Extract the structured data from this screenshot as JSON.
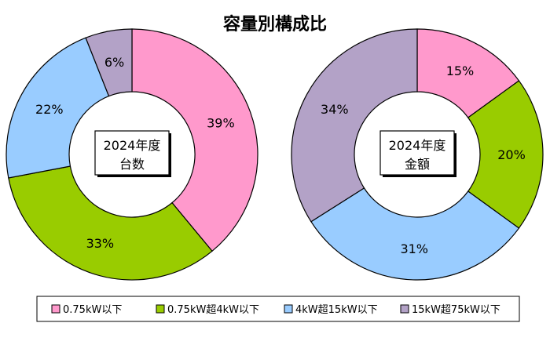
{
  "chart_data": {
    "type": "pie",
    "title": "容量別構成比",
    "categories": [
      "0.75kW以下",
      "0.75kW超4kW以下",
      "4kW超15kW以下",
      "15kW超75kW以下"
    ],
    "colors": [
      "#ff99cc",
      "#99cc00",
      "#99ccff",
      "#b3a2c7"
    ],
    "legend_position": "bottom",
    "charts": [
      {
        "center_label": [
          "2024年度",
          "台数"
        ],
        "values": [
          39,
          33,
          22,
          6
        ],
        "labels": [
          "39%",
          "33%",
          "22%",
          "6%"
        ]
      },
      {
        "center_label": [
          "2024年度",
          "金額"
        ],
        "values": [
          15,
          20,
          31,
          34
        ],
        "labels": [
          "15%",
          "20%",
          "31%",
          "34%"
        ]
      }
    ]
  }
}
